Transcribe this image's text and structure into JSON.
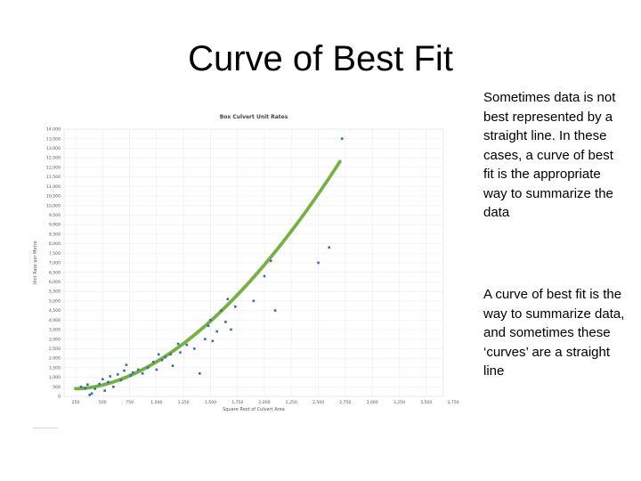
{
  "slide": {
    "title": "Curve of Best Fit",
    "paragraphs": [
      "Sometimes data is not best represented by a straight line. In these cases, a curve of best fit is the appropriate way to summarize the data",
      "A curve of best fit is the way to summarize data, and sometimes these ‘curves’ are a straight line"
    ]
  },
  "chart_data": {
    "type": "scatter",
    "title": "Box Culvert Unit Rates",
    "xlabel": "Square Root of Culvert Area",
    "ylabel": "Unit Rate per Metre",
    "xlim": [
      250,
      2750
    ],
    "ylim": [
      0,
      14000
    ],
    "xticks": [
      "250",
      "500",
      "750",
      "1,000",
      "1,250",
      "1,500",
      "1,750",
      "2,000",
      "2,250",
      "2,500",
      "2,750",
      "3,000",
      "3,250",
      "3,500",
      "3,750"
    ],
    "yticks": [
      "0",
      "500",
      "1,000",
      "1,500",
      "2,000",
      "2,500",
      "3,000",
      "3,500",
      "4,000",
      "4,500",
      "5,000",
      "5,500",
      "6,000",
      "6,500",
      "7,000",
      "7,500",
      "8,000",
      "8,500",
      "9,000",
      "9,500",
      "10,000",
      "10,500",
      "11,000",
      "11,500",
      "12,000",
      "12,500",
      "13,000",
      "13,500",
      "14,000"
    ],
    "grid": true,
    "point_color": "#2f6fb0",
    "fit_color": "#77b041",
    "fit_curve": {
      "x_start": 250,
      "x_end": 2700,
      "y_start": 400,
      "y_end": 12300
    },
    "points": [
      {
        "x": 300,
        "y": 500
      },
      {
        "x": 340,
        "y": 420
      },
      {
        "x": 360,
        "y": 620
      },
      {
        "x": 380,
        "y": 80
      },
      {
        "x": 400,
        "y": 150
      },
      {
        "x": 430,
        "y": 400
      },
      {
        "x": 470,
        "y": 650
      },
      {
        "x": 500,
        "y": 900
      },
      {
        "x": 520,
        "y": 300
      },
      {
        "x": 550,
        "y": 750
      },
      {
        "x": 570,
        "y": 1050
      },
      {
        "x": 600,
        "y": 500
      },
      {
        "x": 640,
        "y": 1150
      },
      {
        "x": 670,
        "y": 850
      },
      {
        "x": 700,
        "y": 1350
      },
      {
        "x": 720,
        "y": 1650
      },
      {
        "x": 760,
        "y": 1100
      },
      {
        "x": 780,
        "y": 1250
      },
      {
        "x": 830,
        "y": 1400
      },
      {
        "x": 870,
        "y": 1200
      },
      {
        "x": 920,
        "y": 1500
      },
      {
        "x": 970,
        "y": 1800
      },
      {
        "x": 1000,
        "y": 1400
      },
      {
        "x": 1020,
        "y": 2200
      },
      {
        "x": 1050,
        "y": 1900
      },
      {
        "x": 1080,
        "y": 2050
      },
      {
        "x": 1130,
        "y": 2200
      },
      {
        "x": 1150,
        "y": 1600
      },
      {
        "x": 1200,
        "y": 2750
      },
      {
        "x": 1220,
        "y": 2300
      },
      {
        "x": 1280,
        "y": 2700
      },
      {
        "x": 1350,
        "y": 2500
      },
      {
        "x": 1400,
        "y": 1200
      },
      {
        "x": 1450,
        "y": 3000
      },
      {
        "x": 1480,
        "y": 3700
      },
      {
        "x": 1500,
        "y": 4000
      },
      {
        "x": 1520,
        "y": 2900
      },
      {
        "x": 1560,
        "y": 3400
      },
      {
        "x": 1600,
        "y": 4500
      },
      {
        "x": 1640,
        "y": 3900
      },
      {
        "x": 1660,
        "y": 5100
      },
      {
        "x": 1690,
        "y": 3500
      },
      {
        "x": 1730,
        "y": 4700
      },
      {
        "x": 1900,
        "y": 5000
      },
      {
        "x": 2000,
        "y": 6300
      },
      {
        "x": 2060,
        "y": 7100
      },
      {
        "x": 2100,
        "y": 4500
      },
      {
        "x": 2500,
        "y": 7000
      },
      {
        "x": 2600,
        "y": 7800
      },
      {
        "x": 2720,
        "y": 13500
      }
    ]
  }
}
